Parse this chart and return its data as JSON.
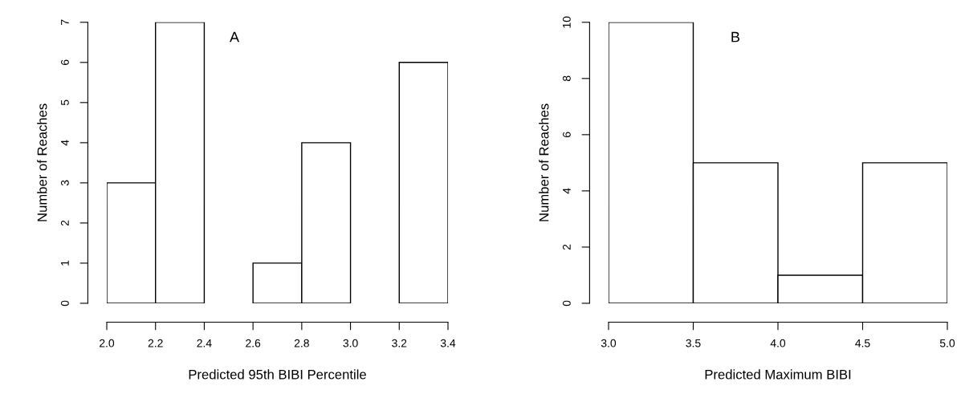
{
  "chart_data": [
    {
      "type": "histogram",
      "xlabel": "Predicted 95th BIBI Percentile",
      "ylabel": "Number of Reaches",
      "annotations": [
        "A"
      ],
      "bins": [
        2.0,
        2.2,
        2.4,
        2.6,
        2.8,
        3.0,
        3.2,
        3.4
      ],
      "values": [
        3,
        7,
        0,
        1,
        4,
        0,
        6
      ],
      "color": "#ffffff",
      "xlim": [
        2.0,
        3.4
      ],
      "xticks": [
        {
          "value": 2.0,
          "label": "2.0"
        },
        {
          "value": 2.2,
          "label": "2.2"
        },
        {
          "value": 2.4,
          "label": "2.4"
        },
        {
          "value": 2.6,
          "label": "2.6"
        },
        {
          "value": 2.8,
          "label": "2.8"
        },
        {
          "value": 3.0,
          "label": "3.0"
        },
        {
          "value": 3.2,
          "label": "3.2"
        },
        {
          "value": 3.4,
          "label": "3.4"
        }
      ],
      "ylim": [
        0,
        7
      ],
      "yticks": [
        0,
        1,
        2,
        3,
        4,
        5,
        6,
        7
      ]
    },
    {
      "type": "histogram",
      "xlabel": "Predicted Maximum BIBI",
      "ylabel": "Number of Reaches",
      "annotations": [
        "B"
      ],
      "bins": [
        3.0,
        3.5,
        4.0,
        4.5,
        5.0
      ],
      "values": [
        10,
        5,
        1,
        5
      ],
      "color": "#ffffff",
      "xlim": [
        3.0,
        5.0
      ],
      "xticks": [
        {
          "value": 3.0,
          "label": "3.0"
        },
        {
          "value": 3.5,
          "label": "3.5"
        },
        {
          "value": 4.0,
          "label": "4.0"
        },
        {
          "value": 4.5,
          "label": "4.5"
        },
        {
          "value": 5.0,
          "label": "5.0"
        }
      ],
      "ylim": [
        0,
        10
      ],
      "yticks": [
        0,
        2,
        4,
        6,
        8,
        10
      ]
    }
  ]
}
